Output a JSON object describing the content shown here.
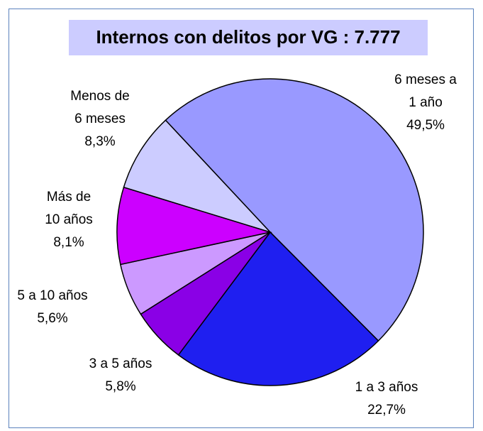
{
  "chart_data": {
    "type": "pie",
    "title": "Internos con delitos por VG : 7.777",
    "categories": [
      "6 meses a 1 año",
      "1 a 3 años",
      "3 a 5 años",
      "5 a 10 años",
      "Más de 10 años",
      "Menos de 6 meses"
    ],
    "values": [
      49.5,
      22.7,
      5.8,
      5.6,
      8.1,
      8.3
    ],
    "value_labels": [
      "49,5%",
      "22,7%",
      "5,8%",
      "5,6%",
      "8,1%",
      "8,3%"
    ],
    "colors": [
      "#9999ff",
      "#1f1ff0",
      "#8a00e6",
      "#cc99ff",
      "#cc00ff",
      "#ccccff"
    ]
  }
}
